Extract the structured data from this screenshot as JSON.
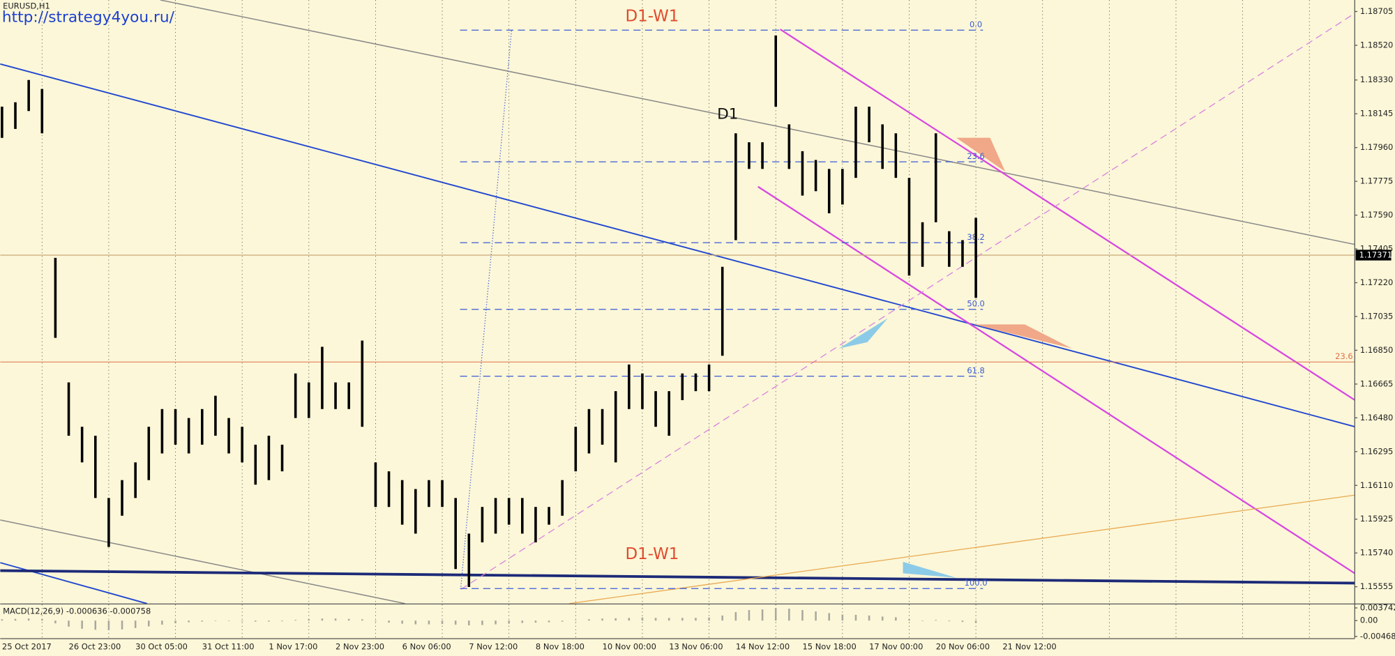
{
  "chart_data": [
    {
      "type": "candlestick",
      "title": "EURUSD,H1",
      "subtitle": "http://strategy4you.ru/",
      "annotations": [
        {
          "text": "D1-W1"
        },
        {
          "text": "D1-W1"
        },
        {
          "text": "D1"
        }
      ],
      "color": "#000000",
      "categories": [
        "25 Oct 2017",
        null,
        null,
        null,
        null,
        "26 Oct 23:00",
        null,
        null,
        null,
        null,
        "30 Oct 05:00",
        null,
        null,
        null,
        null,
        "31 Oct 11:00",
        null,
        null,
        null,
        null,
        "1 Nov 17:00",
        null,
        null,
        null,
        null,
        "2 Nov 23:00",
        null,
        null,
        null,
        null,
        "6 Nov 06:00",
        null,
        null,
        null,
        null,
        "7 Nov 12:00",
        null,
        null,
        null,
        null,
        "8 Nov 18:00",
        null,
        null,
        null,
        null,
        "10 Nov 00:00",
        null,
        null,
        null,
        null,
        "13 Nov 06:00",
        null,
        null,
        null,
        null,
        "14 Nov 12:00",
        null,
        null,
        null,
        null,
        "15 Nov 18:00",
        null,
        null,
        null,
        null,
        "17 Nov 00:00",
        null,
        null,
        null,
        null,
        "20 Nov 06:00",
        null,
        null,
        null,
        null,
        "21 Nov 12:00"
      ],
      "high": [
        1.18184,
        1.18208,
        1.1833,
        1.18281,
        1.17356,
        1.16674,
        1.16431,
        1.16382,
        1.16041,
        1.16139,
        1.16236,
        1.16431,
        1.16528,
        1.16528,
        1.16479,
        1.16528,
        1.16601,
        1.16479,
        1.16431,
        1.16333,
        1.16382,
        1.16333,
        1.16723,
        1.16674,
        1.16869,
        1.16674,
        1.16674,
        1.16903,
        1.16236,
        1.16187,
        1.16139,
        1.1609,
        1.16139,
        1.16139,
        1.16041,
        1.15846,
        1.15992,
        1.16041,
        1.16041,
        1.16041,
        1.15992,
        1.15992,
        1.16139,
        1.16431,
        1.16528,
        1.16528,
        1.16626,
        1.16772,
        1.16723,
        1.16626,
        1.16626,
        1.16723,
        1.16723,
        1.16772,
        1.17307,
        1.18038,
        1.17989,
        1.17989,
        1.18574,
        1.18087,
        1.1794,
        1.17892,
        1.17843,
        1.17843,
        1.18184,
        1.18184,
        1.18087,
        1.18038,
        1.17794,
        1.17551,
        1.18038,
        1.17502,
        1.17453,
        1.17575,
        null,
        null
      ],
      "low": [
        1.18013,
        1.18062,
        1.1816,
        1.18038,
        1.16918,
        1.16382,
        1.16236,
        1.16041,
        1.15773,
        1.15944,
        1.16041,
        1.16139,
        1.16285,
        1.16333,
        1.16285,
        1.16333,
        1.16382,
        1.16285,
        1.16236,
        1.16114,
        1.16139,
        1.16187,
        1.16479,
        1.16479,
        1.16528,
        1.16528,
        1.16528,
        1.16431,
        1.15992,
        1.15992,
        1.15895,
        1.15846,
        1.15992,
        1.15992,
        1.15652,
        1.15554,
        1.15798,
        1.15846,
        1.15895,
        1.15846,
        1.15798,
        1.15895,
        1.15944,
        1.16187,
        1.16285,
        1.16333,
        1.16236,
        1.16528,
        1.16528,
        1.16431,
        1.16382,
        1.16577,
        1.16626,
        1.16626,
        1.1682,
        1.17453,
        1.17843,
        1.17843,
        1.18184,
        1.17843,
        1.17697,
        1.17721,
        1.176,
        1.17648,
        1.17794,
        1.17989,
        1.17843,
        1.17794,
        1.17259,
        1.17307,
        1.17551,
        1.17307,
        1.17307,
        1.17137,
        null,
        null
      ],
      "ylim": [
        1.15463,
        1.18768
      ],
      "yticks": [
        1.18705,
        {
          "value": 1.1852,
          "label": "1.18520"
        },
        {
          "value": 1.1833,
          "label": "1.18330"
        },
        1.18145,
        {
          "value": 1.1796,
          "label": "1.17960"
        },
        1.17775,
        {
          "value": 1.1759,
          "label": "1.17590"
        },
        1.17405,
        {
          "value": 1.1722,
          "label": "1.17220"
        },
        1.17035,
        {
          "value": 1.1685,
          "label": "1.16850"
        },
        1.16665,
        {
          "value": 1.1648,
          "label": "1.16480"
        },
        1.16295,
        {
          "value": 1.1611,
          "label": "1.16110"
        },
        1.15925,
        {
          "value": 1.1574,
          "label": "1.15740"
        },
        1.15555
      ],
      "current_price": 1.17371,
      "fib_levels": [
        {
          "label": "0.0",
          "price": 1.18603
        },
        {
          "label": "23.6",
          "price": 1.17882
        },
        {
          "label": "38.2",
          "price": 1.17439
        },
        {
          "label": "50.0",
          "price": 1.17074
        },
        {
          "label": "61.8",
          "price": 1.16708
        },
        {
          "label": "100.0",
          "price": 1.15545
        }
      ],
      "horizontal_line": {
        "label": "23.6",
        "price": 1.16786,
        "color": "#e0704a"
      }
    },
    {
      "type": "bar",
      "title": "MACD(12,26,9) -0.000636 -0.000758",
      "color": "#a8a8a0",
      "values": [
        0.0004,
        0.0005,
        0.0006,
        0.0005,
        -0.0008,
        -0.0018,
        -0.0024,
        -0.0027,
        -0.0028,
        -0.0026,
        -0.0022,
        -0.0017,
        -0.0012,
        -0.0008,
        -0.0005,
        -0.0003,
        -0.0001,
        -0.0001,
        -0.0002,
        -0.0003,
        -0.0003,
        -0.0002,
        0.0002,
        0.0004,
        0.0006,
        0.0006,
        0.0005,
        0.0004,
        -0.0002,
        -0.0006,
        -0.0009,
        -0.0011,
        -0.0011,
        -0.001,
        -0.0012,
        -0.0014,
        -0.0013,
        -0.0011,
        -0.0009,
        -0.0007,
        -0.0006,
        -0.0005,
        -0.0003,
        0.0001,
        0.0004,
        0.0006,
        0.0007,
        0.0008,
        0.0009,
        0.0008,
        0.0008,
        0.0008,
        0.0008,
        0.0009,
        0.0015,
        0.0025,
        0.0031,
        0.0033,
        0.0037,
        0.0035,
        0.0031,
        0.0027,
        0.0022,
        0.0018,
        0.0017,
        0.0015,
        0.0012,
        0.001,
        0.0004,
        0,
        0.0002,
        -0.0002,
        -0.0004,
        -0.0006,
        null,
        null
      ],
      "ylim": [
        -0.0052,
        0.0045
      ],
      "yticks": [
        0.003742,
        {
          "value": 0,
          "label": "0.00"
        },
        -0.004681
      ]
    }
  ]
}
